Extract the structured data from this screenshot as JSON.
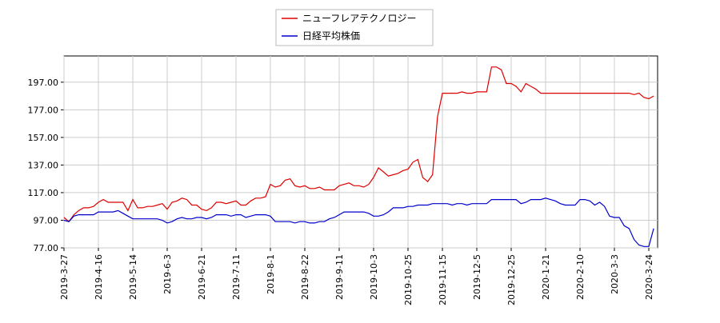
{
  "chart_data": {
    "type": "line",
    "categories": [
      "2019-3-27",
      null,
      null,
      null,
      null,
      null,
      null,
      "2019-4-16",
      null,
      null,
      null,
      null,
      null,
      null,
      "2019-5-14",
      null,
      null,
      null,
      null,
      null,
      null,
      "2019-6-3",
      null,
      null,
      null,
      null,
      null,
      null,
      "2019-6-21",
      null,
      null,
      null,
      null,
      null,
      null,
      "2019-7-11",
      null,
      null,
      null,
      null,
      null,
      null,
      "2019-8-1",
      null,
      null,
      null,
      null,
      null,
      null,
      "2019-8-22",
      null,
      null,
      null,
      null,
      null,
      null,
      "2019-9-11",
      null,
      null,
      null,
      null,
      null,
      null,
      "2019-10-3",
      null,
      null,
      null,
      null,
      null,
      null,
      "2019-10-25",
      null,
      null,
      null,
      null,
      null,
      null,
      "2019-11-15",
      null,
      null,
      null,
      null,
      null,
      null,
      "2019-12-5",
      null,
      null,
      null,
      null,
      null,
      null,
      "2019-12-25",
      null,
      null,
      null,
      null,
      null,
      null,
      "2020-1-21",
      null,
      null,
      null,
      null,
      null,
      null,
      "2020-2-10",
      null,
      null,
      null,
      null,
      null,
      null,
      "2020-3-3",
      null,
      null,
      null,
      null,
      null,
      null,
      "2020-3-24",
      null
    ],
    "series": [
      {
        "name": "ニューフレアテクノロジー",
        "color": "#dd0000",
        "values": [
          99,
          96,
          101,
          104,
          106,
          106,
          107,
          110,
          112,
          110,
          110,
          110,
          110,
          104,
          112,
          106,
          106,
          107,
          107,
          108,
          109,
          105,
          110,
          111,
          113,
          112,
          108,
          108,
          105,
          104,
          106,
          110,
          110,
          109,
          110,
          111,
          108,
          108,
          111,
          113,
          113,
          114,
          123,
          121,
          122,
          126,
          127,
          122,
          121,
          122,
          120,
          120,
          121,
          119,
          119,
          119,
          122,
          123,
          124,
          122,
          122,
          121,
          123,
          128,
          135,
          132,
          129,
          130,
          131,
          133,
          134,
          139,
          141,
          128,
          125,
          130,
          172,
          189,
          189,
          189,
          189,
          190,
          189,
          189,
          190,
          190,
          190,
          208,
          208,
          206,
          196,
          196,
          194,
          190,
          196,
          194,
          192,
          189,
          189,
          189,
          189,
          189,
          189,
          189,
          189,
          189,
          189,
          189,
          189,
          189,
          189,
          189,
          189,
          189,
          189,
          189,
          188,
          189,
          186,
          185,
          187
        ]
      },
      {
        "name": "日経平均株価",
        "color": "#0000cc",
        "values": [
          97,
          96,
          100,
          101,
          101,
          101,
          101,
          103,
          103,
          103,
          103,
          104,
          102,
          100,
          98,
          98,
          98,
          98,
          98,
          98,
          97,
          95,
          96,
          98,
          99,
          98,
          98,
          99,
          99,
          98,
          99,
          101,
          101,
          101,
          100,
          101,
          101,
          99,
          100,
          101,
          101,
          101,
          100,
          96,
          96,
          96,
          96,
          95,
          96,
          96,
          95,
          95,
          96,
          96,
          98,
          99,
          101,
          103,
          103,
          103,
          103,
          103,
          102,
          100,
          100,
          101,
          103,
          106,
          106,
          106,
          107,
          107,
          108,
          108,
          108,
          109,
          109,
          109,
          109,
          108,
          109,
          109,
          108,
          109,
          109,
          109,
          109,
          112,
          112,
          112,
          112,
          112,
          112,
          109,
          110,
          112,
          112,
          112,
          113,
          112,
          111,
          109,
          108,
          108,
          108,
          112,
          112,
          111,
          108,
          110,
          107,
          100,
          99,
          99,
          93,
          91,
          83,
          79,
          78,
          78,
          91
        ]
      }
    ],
    "ylim": [
      77,
      216
    ],
    "yticks": [
      {
        "value": 77,
        "label": "77.00"
      },
      {
        "value": 97,
        "label": "97.00"
      },
      {
        "value": 117,
        "label": "117.00"
      },
      {
        "value": 137,
        "label": "137.00"
      },
      {
        "value": 157,
        "label": "157.00"
      },
      {
        "value": 177,
        "label": "177.00"
      },
      {
        "value": 197,
        "label": "197.00"
      }
    ],
    "grid": true
  }
}
